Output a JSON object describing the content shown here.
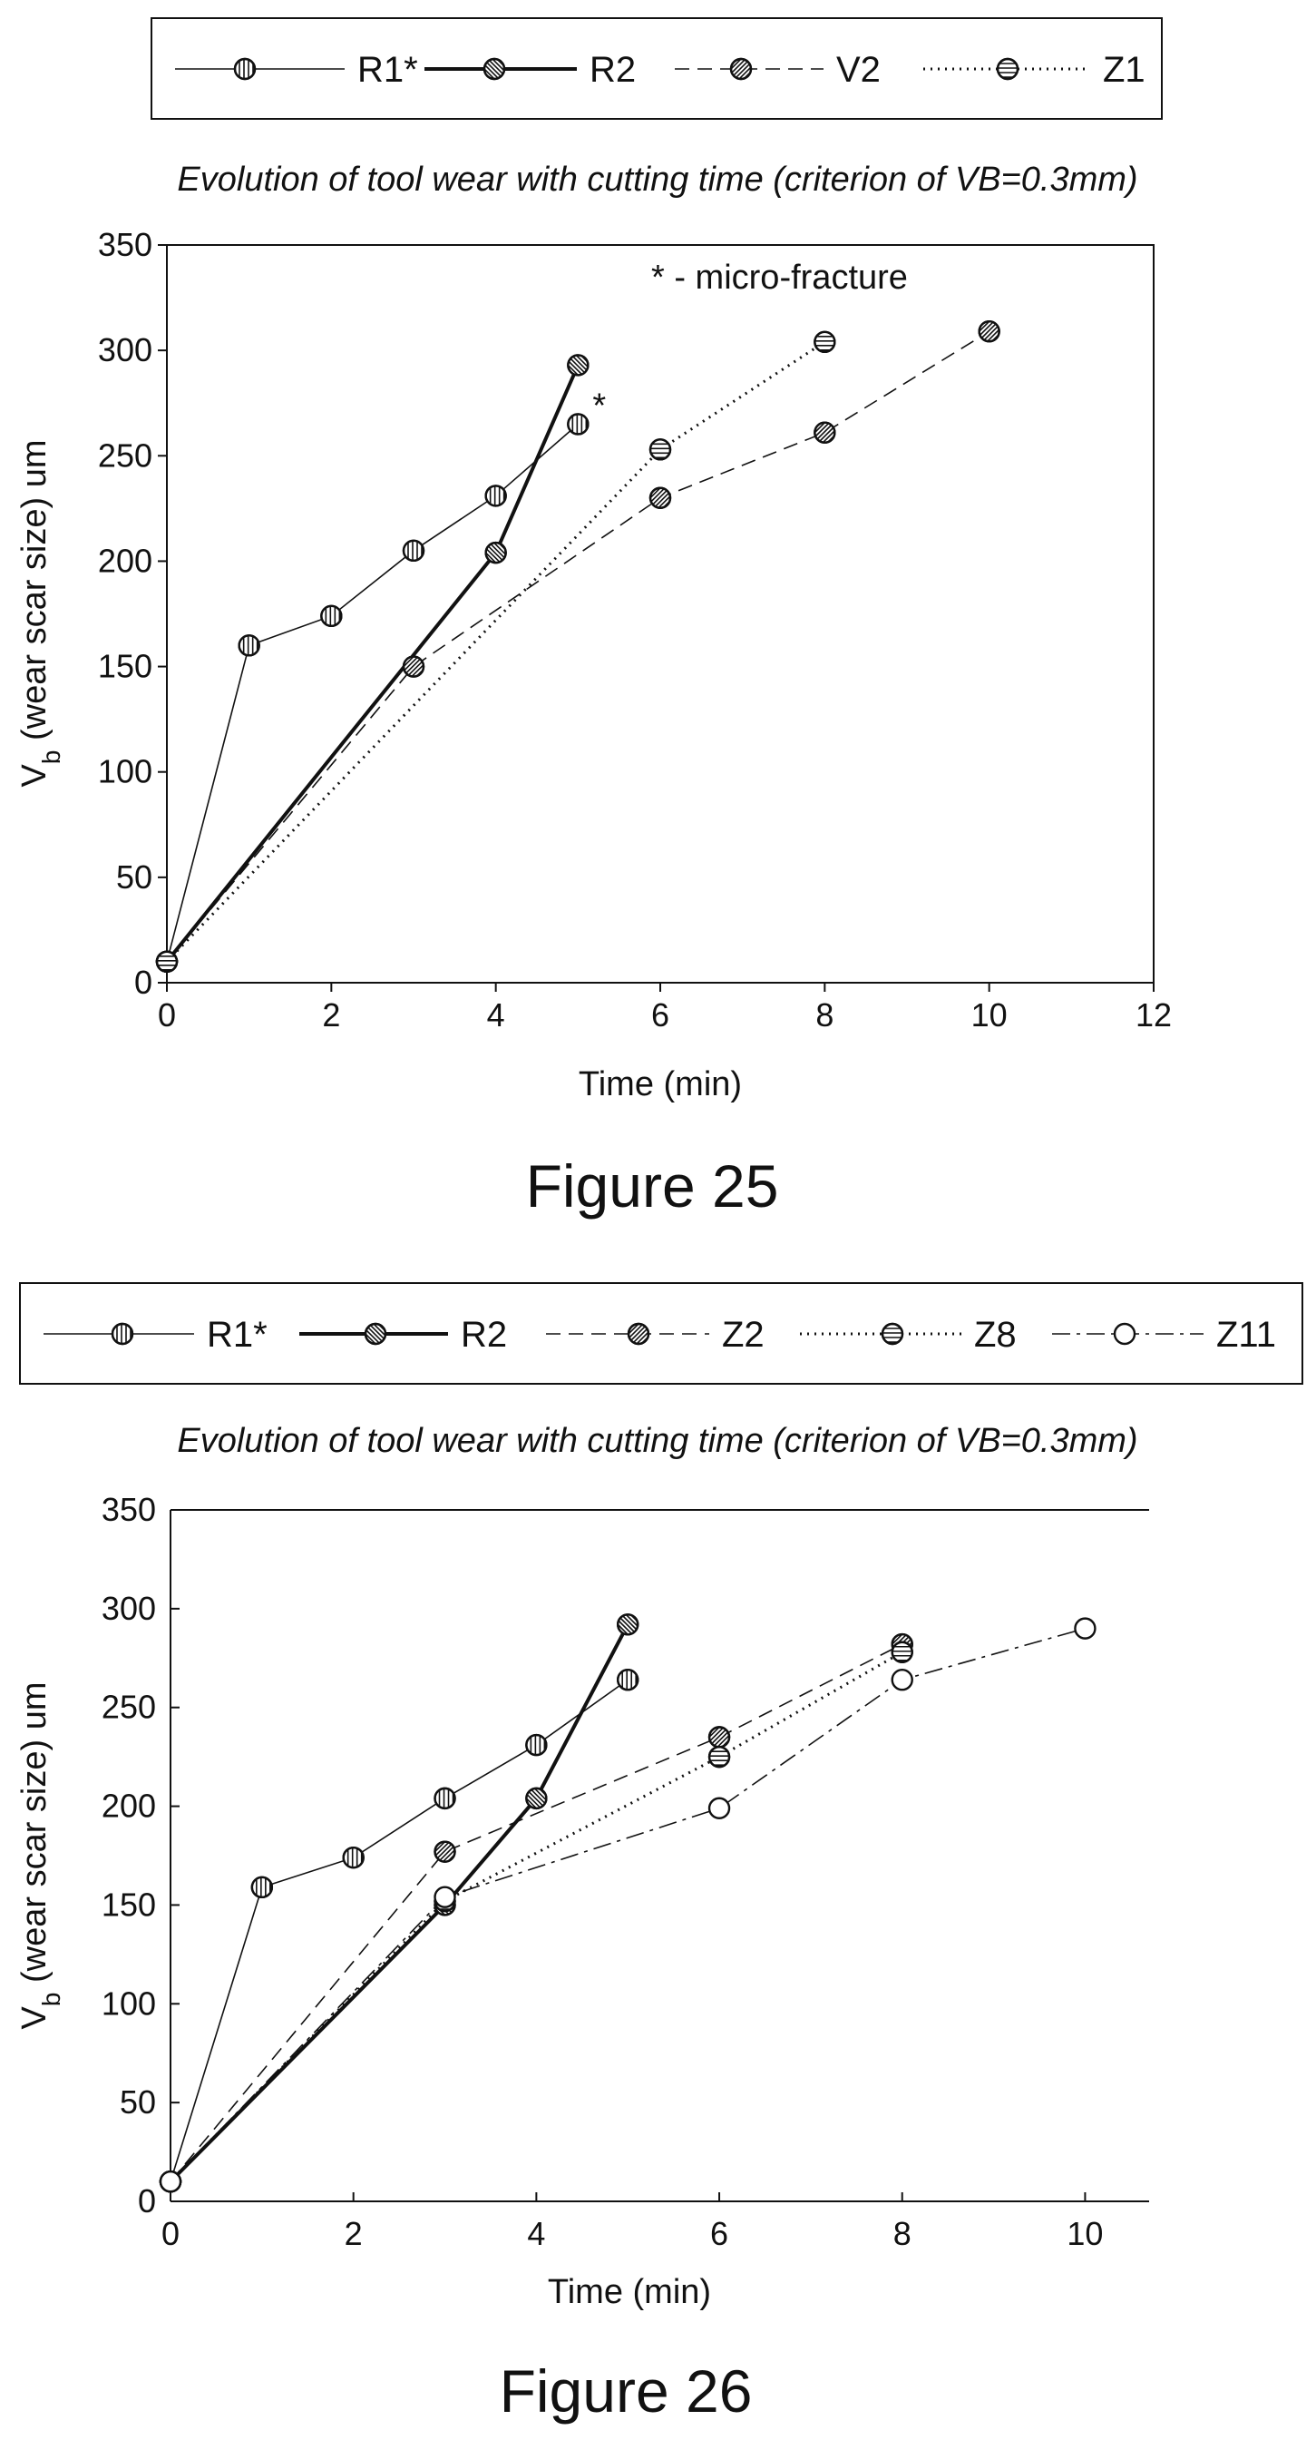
{
  "figures": [
    {
      "caption": "Figure 25",
      "chart_data": {
        "type": "line",
        "title": "Evolution of tool wear with cutting time (criterion of VB=0.3mm)",
        "xlabel": "Time (min)",
        "ylabel": {
          "main": "V",
          "sub": "b",
          "rest": " (wear scar size) um"
        },
        "xlim": [
          0,
          12
        ],
        "ylim": [
          0,
          350
        ],
        "xticks": [
          0,
          2,
          4,
          6,
          8,
          10,
          12
        ],
        "yticks": [
          0,
          50,
          100,
          150,
          200,
          250,
          300,
          350
        ],
        "grid": false,
        "legend_position": "top",
        "annotation": "* - micro-fracture",
        "point_note": {
          "series": "R1*",
          "x": 5,
          "text": "*"
        },
        "series": [
          {
            "name": "R1*",
            "line": "solid-thin",
            "marker": "vertical",
            "x": [
              0,
              1,
              2,
              3,
              4,
              5
            ],
            "y": [
              10,
              160,
              174,
              205,
              231,
              265
            ]
          },
          {
            "name": "R2",
            "line": "solid-thick",
            "marker": "diag-down",
            "x": [
              0,
              4,
              5
            ],
            "y": [
              10,
              204,
              293
            ]
          },
          {
            "name": "V2",
            "line": "dashed",
            "marker": "diag-up",
            "x": [
              0,
              3,
              6,
              8,
              10
            ],
            "y": [
              10,
              150,
              230,
              261,
              309
            ]
          },
          {
            "name": "Z1",
            "line": "dotted",
            "marker": "horizontal",
            "x": [
              0,
              6,
              8
            ],
            "y": [
              10,
              253,
              304
            ]
          }
        ]
      }
    },
    {
      "caption": "Figure 26",
      "chart_data": {
        "type": "line",
        "title": "Evolution of tool wear with cutting time (criterion of VB=0.3mm)",
        "xlabel": "Time (min)",
        "ylabel": {
          "main": "V",
          "sub": "b",
          "rest": " (wear scar size) um"
        },
        "xlim": [
          0,
          10.7
        ],
        "ylim": [
          0,
          350
        ],
        "xticks": [
          0,
          2,
          4,
          6,
          8,
          10
        ],
        "yticks": [
          0,
          50,
          100,
          150,
          200,
          250,
          300,
          350
        ],
        "grid": false,
        "legend_position": "top",
        "series": [
          {
            "name": "R1*",
            "line": "solid-thin",
            "marker": "vertical",
            "x": [
              0,
              1,
              2,
              3,
              4,
              5
            ],
            "y": [
              10,
              159,
              174,
              204,
              231,
              264
            ]
          },
          {
            "name": "R2",
            "line": "solid-thick",
            "marker": "diag-down",
            "x": [
              0,
              3,
              4,
              5
            ],
            "y": [
              10,
              150,
              204,
              292
            ]
          },
          {
            "name": "Z2",
            "line": "dashed",
            "marker": "diag-up",
            "x": [
              0,
              3,
              6,
              8
            ],
            "y": [
              10,
              177,
              235,
              282
            ]
          },
          {
            "name": "Z8",
            "line": "dotted",
            "marker": "horizontal",
            "x": [
              0,
              3,
              6,
              8
            ],
            "y": [
              10,
              152,
              225,
              278
            ]
          },
          {
            "name": "Z11",
            "line": "dashdot",
            "marker": "open",
            "x": [
              0,
              3,
              6,
              8,
              10
            ],
            "y": [
              10,
              154,
              199,
              264,
              290
            ]
          }
        ]
      }
    }
  ]
}
